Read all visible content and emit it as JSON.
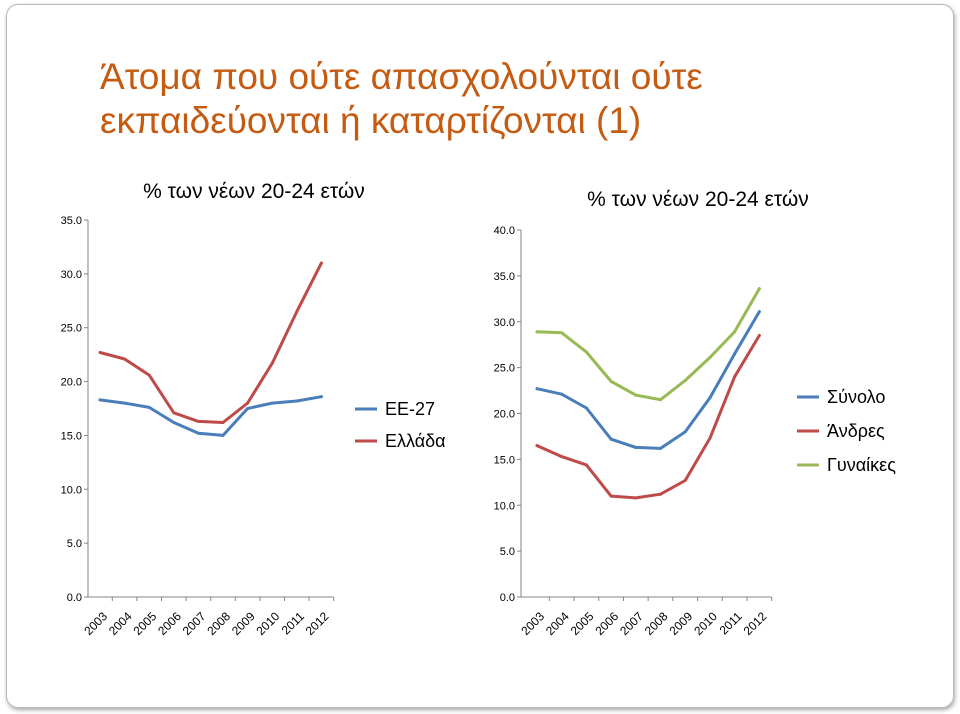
{
  "slide": {
    "title_line1": "Άτομα που ούτε απασχολούνται ούτε",
    "title_line2": "εκπαιδεύονται ή καταρτίζονται (1)"
  },
  "chart_data": [
    {
      "type": "line",
      "title": "% των νέων 20-24 ετών",
      "categories": [
        "2003",
        "2004",
        "2005",
        "2006",
        "2007",
        "2008",
        "2009",
        "2010",
        "2011",
        "2012"
      ],
      "ylim": [
        0,
        35
      ],
      "yticks": [
        "0.0",
        "5.0",
        "10.0",
        "15.0",
        "20.0",
        "25.0",
        "30.0",
        "35.0"
      ],
      "legend_position": "right",
      "series": [
        {
          "name": "ΕΕ-27",
          "color": "#4a7ebb",
          "values": [
            18.3,
            18.0,
            17.6,
            16.2,
            15.2,
            15.0,
            17.5,
            18.0,
            18.2,
            18.6
          ]
        },
        {
          "name": "Ελλάδα",
          "color": "#be4b48",
          "values": [
            22.7,
            22.1,
            20.6,
            17.1,
            16.3,
            16.2,
            18.0,
            21.7,
            26.5,
            31.0
          ]
        }
      ]
    },
    {
      "type": "line",
      "title": "% των νέων 20-24 ετών",
      "categories": [
        "2003",
        "2004",
        "2005",
        "2006",
        "2007",
        "2008",
        "2009",
        "2010",
        "2011",
        "2012"
      ],
      "ylim": [
        0,
        40
      ],
      "yticks": [
        "0.0",
        "5.0",
        "10.0",
        "15.0",
        "20.0",
        "25.0",
        "30.0",
        "35.0",
        "40.0"
      ],
      "legend_position": "right",
      "series": [
        {
          "name": "Σύνολο",
          "color": "#4a7ebb",
          "values": [
            22.7,
            22.1,
            20.6,
            17.2,
            16.3,
            16.2,
            18.0,
            21.7,
            26.5,
            31.1
          ]
        },
        {
          "name": "Άνδρες",
          "color": "#be4b48",
          "values": [
            16.5,
            15.3,
            14.4,
            11.0,
            10.8,
            11.2,
            12.7,
            17.3,
            24.0,
            28.5
          ]
        },
        {
          "name": "Γυναίκες",
          "color": "#98b954",
          "values": [
            28.9,
            28.8,
            26.7,
            23.5,
            22.0,
            21.5,
            23.6,
            26.1,
            28.9,
            33.6
          ]
        }
      ]
    }
  ]
}
